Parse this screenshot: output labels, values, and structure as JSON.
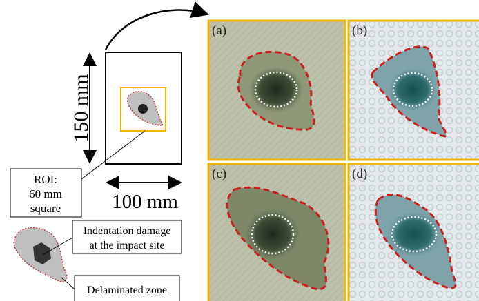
{
  "dimensions": {
    "height": "150 mm",
    "width": "100 mm"
  },
  "roi": {
    "lines": [
      "ROI:",
      "60 mm",
      "square"
    ]
  },
  "legend": {
    "indentation": [
      "Indentation damage",
      "at the impact site"
    ],
    "delamination": "Delaminated zone"
  },
  "panels": [
    {
      "label": "(a)"
    },
    {
      "label": "(b)"
    },
    {
      "label": "(c)"
    },
    {
      "label": "(d)"
    }
  ]
}
